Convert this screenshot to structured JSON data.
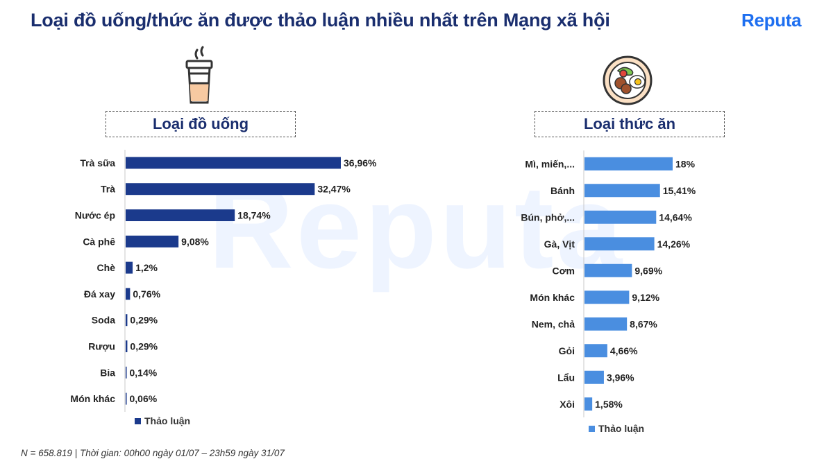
{
  "header": {
    "title": "Loại đồ uống/thức ăn được thảo luận nhiều nhất trên Mạng xã hội",
    "logo": "Reputa",
    "watermark": "Reputa"
  },
  "footnote": "N = 658.819 | Thời gian: 00h00 ngày 01/07 – 23h59 ngày 31/07",
  "colors": {
    "title": "#1a2e6e",
    "logo": "#1e6ff0",
    "drink_bar": "#1b3a8c",
    "food_bar": "#4a8ee0"
  },
  "icons": {
    "drink": "coffee-cup-icon",
    "food": "food-plate-icon"
  },
  "chart_data": [
    {
      "type": "bar",
      "orientation": "horizontal",
      "title": "Loại đồ uống",
      "categories": [
        "Trà sữa",
        "Trà",
        "Nước ép",
        "Cà phê",
        "Chè",
        "Đá xay",
        "Soda",
        "Rượu",
        "Bia",
        "Món khác"
      ],
      "series": [
        {
          "name": "Thảo luận",
          "values": [
            36.96,
            32.47,
            18.74,
            9.08,
            1.2,
            0.76,
            0.29,
            0.29,
            0.14,
            0.06
          ],
          "labels": [
            "36,96%",
            "32,47%",
            "18,74%",
            "9,08%",
            "1,2%",
            "0,76%",
            "0,29%",
            "0,29%",
            "0,14%",
            "0,06%"
          ]
        }
      ],
      "xlim": [
        0,
        40
      ],
      "legend": "bottom-left",
      "grid": false
    },
    {
      "type": "bar",
      "orientation": "horizontal",
      "title": "Loại thức ăn",
      "categories": [
        "Mì, miến,...",
        "Bánh",
        "Bún, phở,...",
        "Gà, Vịt",
        "Cơm",
        "Món khác",
        "Nem, chả",
        "Gỏi",
        "Lẩu",
        "Xôi"
      ],
      "series": [
        {
          "name": "Thảo luận",
          "values": [
            18,
            15.41,
            14.64,
            14.26,
            9.69,
            9.12,
            8.67,
            4.66,
            3.96,
            1.58
          ],
          "labels": [
            "18%",
            "15,41%",
            "14,64%",
            "14,26%",
            "9,69%",
            "9,12%",
            "8,67%",
            "4,66%",
            "3,96%",
            "1,58%"
          ]
        }
      ],
      "xlim": [
        0,
        20
      ],
      "legend": "bottom-left",
      "grid": false
    }
  ]
}
